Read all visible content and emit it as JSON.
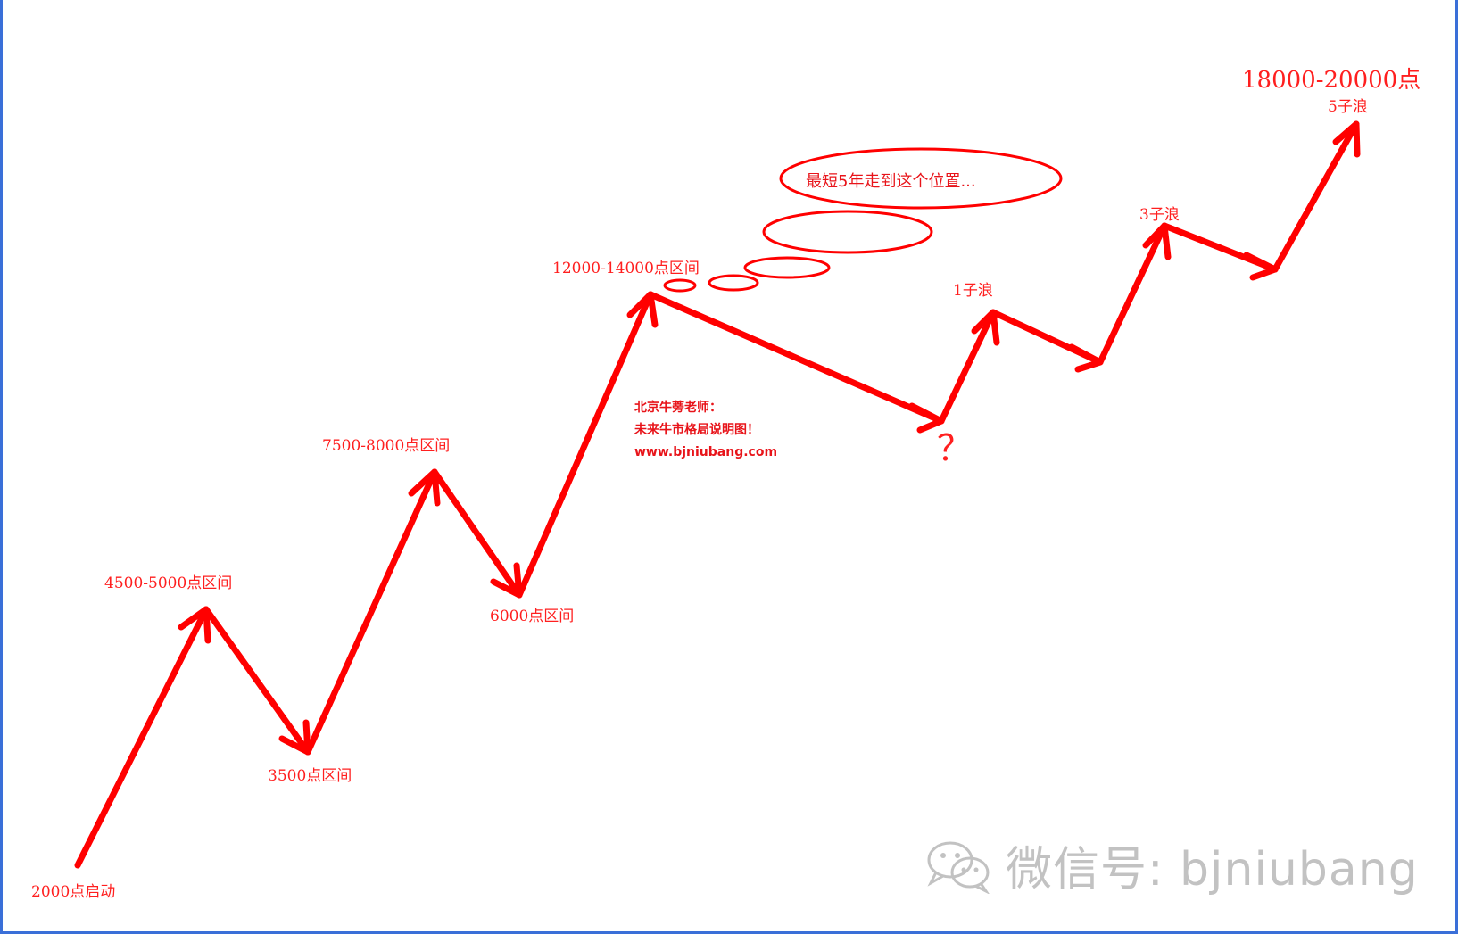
{
  "labels": {
    "start": "2000点启动",
    "peak1": "4500-5000点区间",
    "trough1": "3500点区间",
    "peak2": "7500-8000点区间",
    "trough2": "6000点区间",
    "peak3": "12000-14000点区间",
    "sub1": "1子浪",
    "sub3": "3子浪",
    "sub5": "5子浪",
    "target": "18000-20000点",
    "question": "？"
  },
  "bubble": {
    "text": "最短5年走到这个位置..."
  },
  "note": {
    "line1": "北京牛蒡老师：",
    "line2": "未来牛市格局说明图！",
    "line3": "www.bjniubang.com"
  },
  "watermark": {
    "text": "微信号: bjniubang",
    "icon": "wechat-icon"
  },
  "colors": {
    "arrow": "#ff0000",
    "text": "#ff1f1f",
    "frame": "#3a6fd8",
    "watermark": "#c2c2c2"
  }
}
